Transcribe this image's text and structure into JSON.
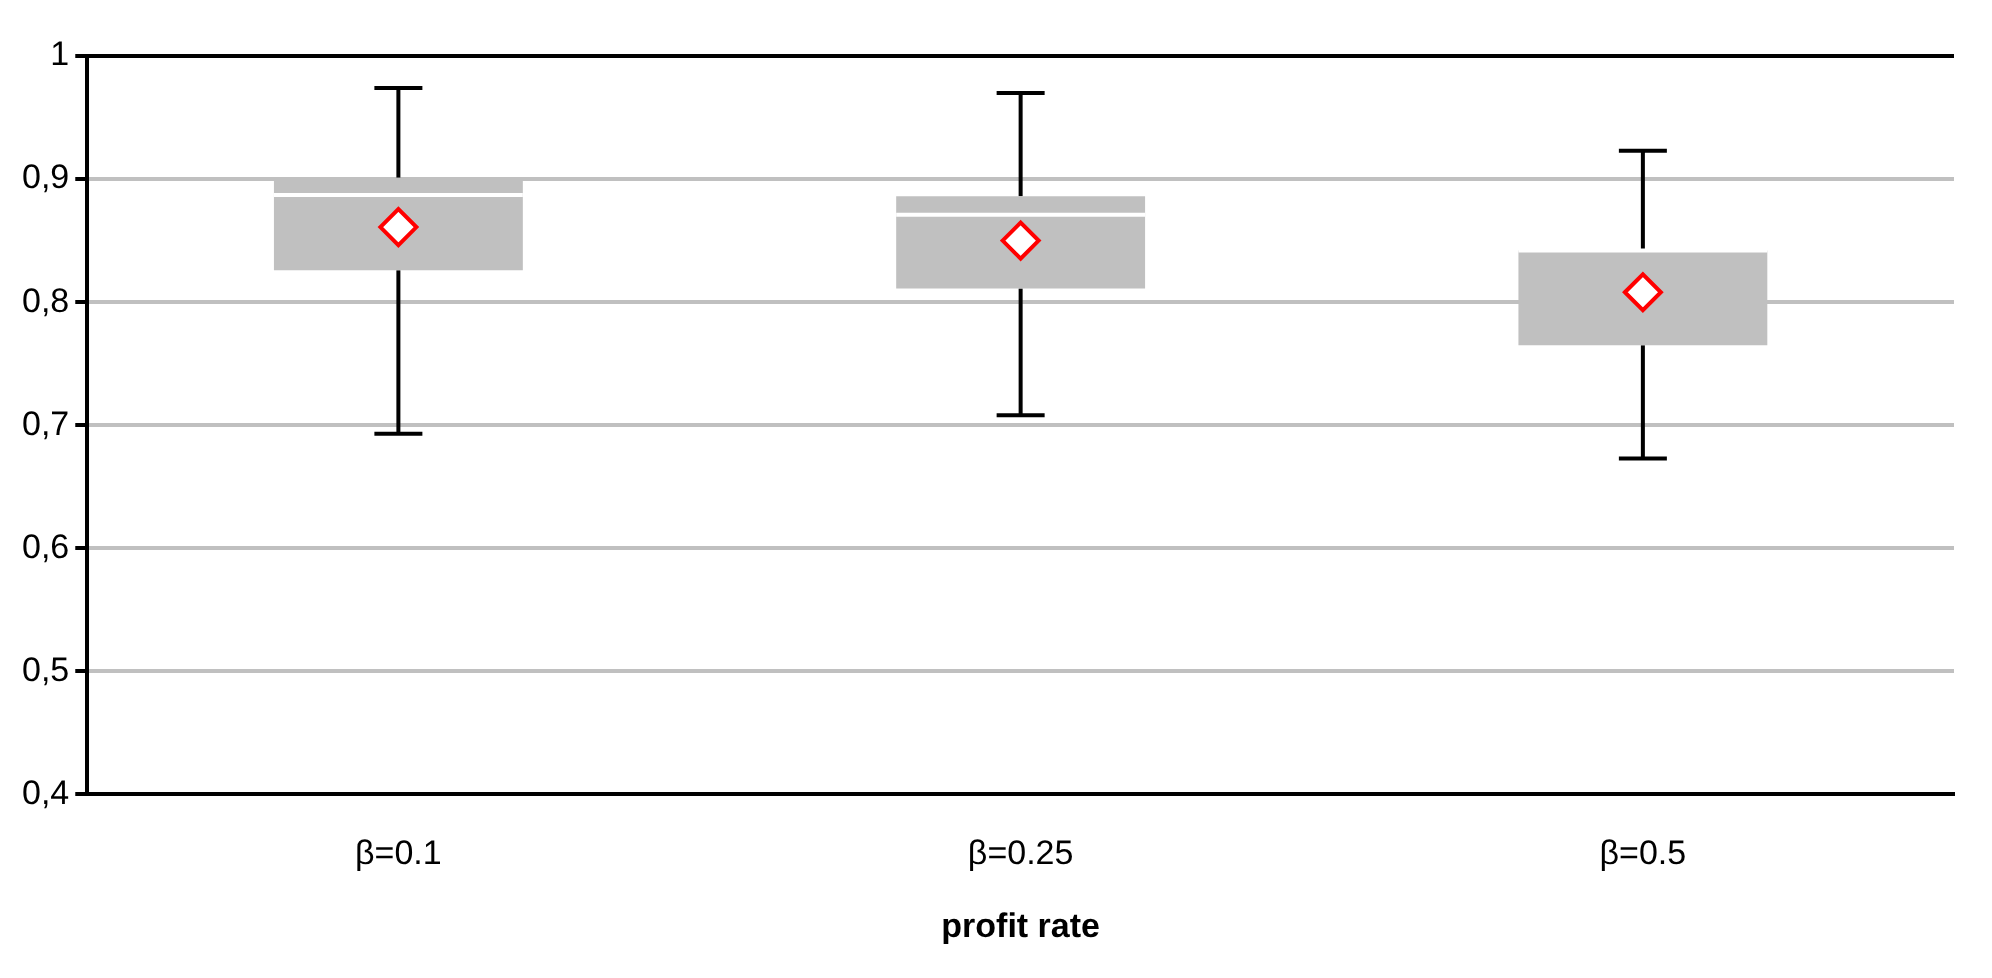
{
  "chart_data": {
    "type": "box",
    "xlabel": "profit rate",
    "categories": [
      "β=0.1",
      "β=0.25",
      "β=0.5"
    ],
    "color": "#c0c0c0",
    "boxes": [
      {
        "low": 0.693,
        "q1": 0.826,
        "median": 0.887,
        "q3": 0.901,
        "high": 0.974,
        "mean": 0.861
      },
      {
        "low": 0.708,
        "q1": 0.811,
        "median": 0.871,
        "q3": 0.886,
        "high": 0.97,
        "mean": 0.85
      },
      {
        "low": 0.673,
        "q1": 0.765,
        "median": 0.842,
        "q3": 0.842,
        "high": 0.923,
        "mean": 0.808
      }
    ],
    "ylim": [
      0.4,
      1
    ],
    "yticks": [
      {
        "value": 0.4,
        "label": "0,4"
      },
      {
        "value": 0.5,
        "label": "0,5"
      },
      {
        "value": 0.6,
        "label": "0,6"
      },
      {
        "value": 0.7,
        "label": "0,7"
      },
      {
        "value": 0.8,
        "label": "0,8"
      },
      {
        "value": 0.9,
        "label": "0,9"
      },
      1
    ],
    "grid": "y",
    "legend": false
  }
}
